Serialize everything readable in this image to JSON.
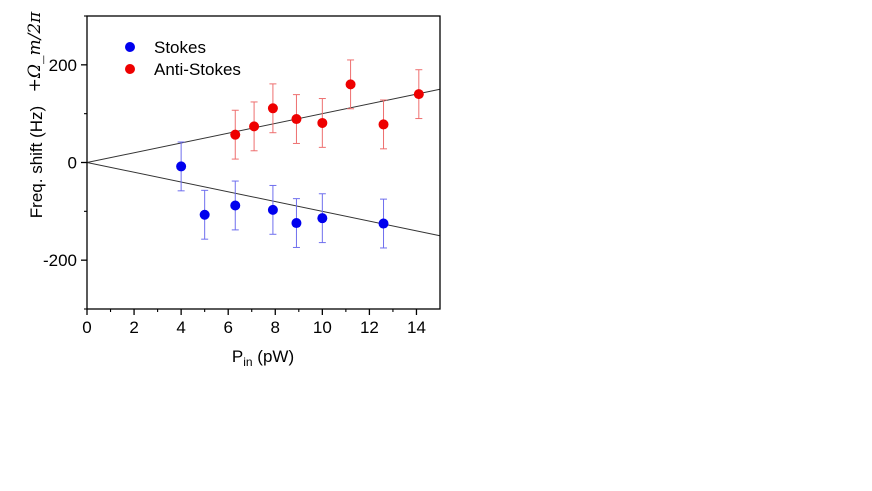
{
  "chart_data": {
    "type": "scatter",
    "title": "",
    "xlabel": {
      "main": "P",
      "sub": "in",
      "unit": " (pW)"
    },
    "ylabel": "Freq. shift (Hz)",
    "annotation": "+Ω_m/2π",
    "xlim": [
      0,
      15
    ],
    "ylim": [
      -300,
      300
    ],
    "xticks": [
      0,
      2,
      4,
      6,
      8,
      10,
      12,
      14
    ],
    "xtick_labels": [
      "0",
      "2",
      "4",
      "6",
      "8",
      "10",
      "12",
      "14"
    ],
    "yticks": [
      -200,
      0,
      200
    ],
    "ytick_labels": [
      "-200",
      "0",
      "200"
    ],
    "legend_position": "top-left",
    "series": [
      {
        "name": "Stokes",
        "color": "#0000ee",
        "errorbar_color": "#6f6fee",
        "x": [
          4.0,
          5.0,
          6.3,
          7.9,
          8.9,
          10.0,
          12.6
        ],
        "y": [
          -8,
          -107,
          -88,
          -97,
          -124,
          -114,
          -125
        ],
        "err": [
          50,
          50,
          50,
          50,
          50,
          50,
          50
        ]
      },
      {
        "name": "Anti-Stokes",
        "color": "#ee0000",
        "errorbar_color": "#ee6f6f",
        "x": [
          6.3,
          7.1,
          7.9,
          8.9,
          10.0,
          11.2,
          12.6,
          14.1
        ],
        "y": [
          57,
          74,
          111,
          89,
          81,
          160,
          78,
          140
        ],
        "err": [
          50,
          50,
          50,
          50,
          50,
          50,
          50,
          50
        ]
      }
    ],
    "fit_lines": [
      {
        "name": "anti-stokes-fit",
        "slope": 10,
        "intercept": 0,
        "color": "#333333"
      },
      {
        "name": "stokes-fit",
        "slope": -10,
        "intercept": 0,
        "color": "#333333"
      }
    ]
  }
}
